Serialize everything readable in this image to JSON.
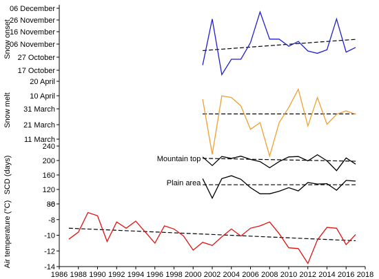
{
  "chart_data": [
    {
      "type": "line",
      "ylabel": "Snow onset",
      "ytick_labels": [
        "06 December",
        "26 November",
        "16 November",
        "06 November",
        "27 October",
        "17 October"
      ],
      "ylim": [
        -5,
        55
      ],
      "series": [
        {
          "color": "#1f1fcc",
          "x": [
            2001,
            2002,
            2003,
            2004,
            2005,
            2006,
            2007,
            2008,
            2009,
            2010,
            2011,
            2012,
            2013,
            2014,
            2015,
            2016,
            2017
          ],
          "y": [
            4,
            43,
            -4,
            9,
            9,
            23,
            49,
            26,
            26,
            20,
            24,
            16,
            14,
            17,
            43,
            15,
            19
          ]
        }
      ],
      "trend": {
        "style": "dashed",
        "color": "#000000",
        "x": [
          2001,
          2017
        ],
        "y": [
          16.3,
          25.8
        ]
      }
    },
    {
      "type": "line",
      "ylabel": "Snow melt",
      "ytick_labels": [
        "20 April",
        "10 April",
        "31 March",
        "21 March",
        "11 March"
      ],
      "ylim": [
        -5,
        37
      ],
      "series": [
        {
          "color": "#f0a030",
          "x": [
            2001,
            2002,
            2003,
            2004,
            2005,
            2006,
            2007,
            2008,
            2009,
            2010,
            2011,
            2012,
            2013,
            2014,
            2015,
            2016,
            2017
          ],
          "y": [
            23,
            -10,
            25,
            24,
            19,
            5,
            9,
            -11,
            9,
            18,
            29,
            7,
            24,
            8,
            14,
            16,
            14
          ]
        }
      ],
      "trend": {
        "style": "dashed",
        "color": "#000000",
        "x": [
          2001,
          2017
        ],
        "y": [
          14.2,
          14.2
        ]
      }
    },
    {
      "type": "line",
      "ylabel": "SCD (days)",
      "ylim": [
        80,
        240
      ],
      "yticks": [
        80,
        120,
        160,
        200,
        240
      ],
      "series": [
        {
          "name": "Mountain top",
          "color": "#000000",
          "x": [
            2001,
            2002,
            2003,
            2004,
            2005,
            2006,
            2007,
            2008,
            2009,
            2010,
            2011,
            2012,
            2013,
            2014,
            2015,
            2016,
            2017
          ],
          "y": [
            210,
            186,
            211,
            206,
            212,
            203,
            197,
            180,
            197,
            210,
            211,
            199,
            216,
            199,
            172,
            207,
            190
          ]
        },
        {
          "name": "Plain area",
          "color": "#000000",
          "x": [
            2001,
            2002,
            2003,
            2004,
            2005,
            2006,
            2007,
            2008,
            2009,
            2010,
            2011,
            2012,
            2013,
            2014,
            2015,
            2016,
            2017
          ],
          "y": [
            150,
            96,
            150,
            158,
            148,
            125,
            108,
            108,
            115,
            125,
            116,
            139,
            135,
            136,
            118,
            145,
            143
          ]
        }
      ],
      "trends": [
        {
          "style": "dashed",
          "color": "#000000",
          "x": [
            2001,
            2017
          ],
          "y": [
            206,
            198
          ]
        },
        {
          "style": "dashed",
          "color": "#000000",
          "x": [
            2001,
            2017
          ],
          "y": [
            133,
            133
          ]
        }
      ]
    },
    {
      "type": "line",
      "ylabel": "Air temperature (°C)",
      "ylim": [
        -14,
        -6
      ],
      "yticks": [
        -14,
        -12,
        -10,
        -8,
        -6
      ],
      "xlim": [
        1986,
        2018
      ],
      "xticks": [
        1986,
        1988,
        1990,
        1992,
        1994,
        1996,
        1998,
        2000,
        2002,
        2004,
        2006,
        2008,
        2010,
        2012,
        2014,
        2016,
        2018
      ],
      "series": [
        {
          "color": "#e01010",
          "x": [
            1987,
            1988,
            1989,
            1990,
            1991,
            1992,
            1993,
            1994,
            1995,
            1996,
            1997,
            1998,
            1999,
            2000,
            2001,
            2002,
            2003,
            2004,
            2005,
            2006,
            2007,
            2008,
            2009,
            2010,
            2011,
            2012,
            2013,
            2014,
            2015,
            2016,
            2017
          ],
          "y": [
            -10.5,
            -9.6,
            -7.1,
            -7.5,
            -10.8,
            -8.3,
            -9.1,
            -8.2,
            -9.6,
            -11.0,
            -8.8,
            -9.2,
            -10.1,
            -11.9,
            -10.9,
            -11.3,
            -10.2,
            -9.2,
            -10.1,
            -9.1,
            -8.8,
            -8.3,
            -9.8,
            -11.6,
            -11.7,
            -13.6,
            -10.6,
            -9.0,
            -9.1,
            -11.2,
            -9.9
          ]
        }
      ],
      "trend": {
        "style": "dashed",
        "color": "#000000",
        "x": [
          1987,
          2017
        ],
        "y": [
          -9.1,
          -10.7
        ]
      }
    }
  ]
}
